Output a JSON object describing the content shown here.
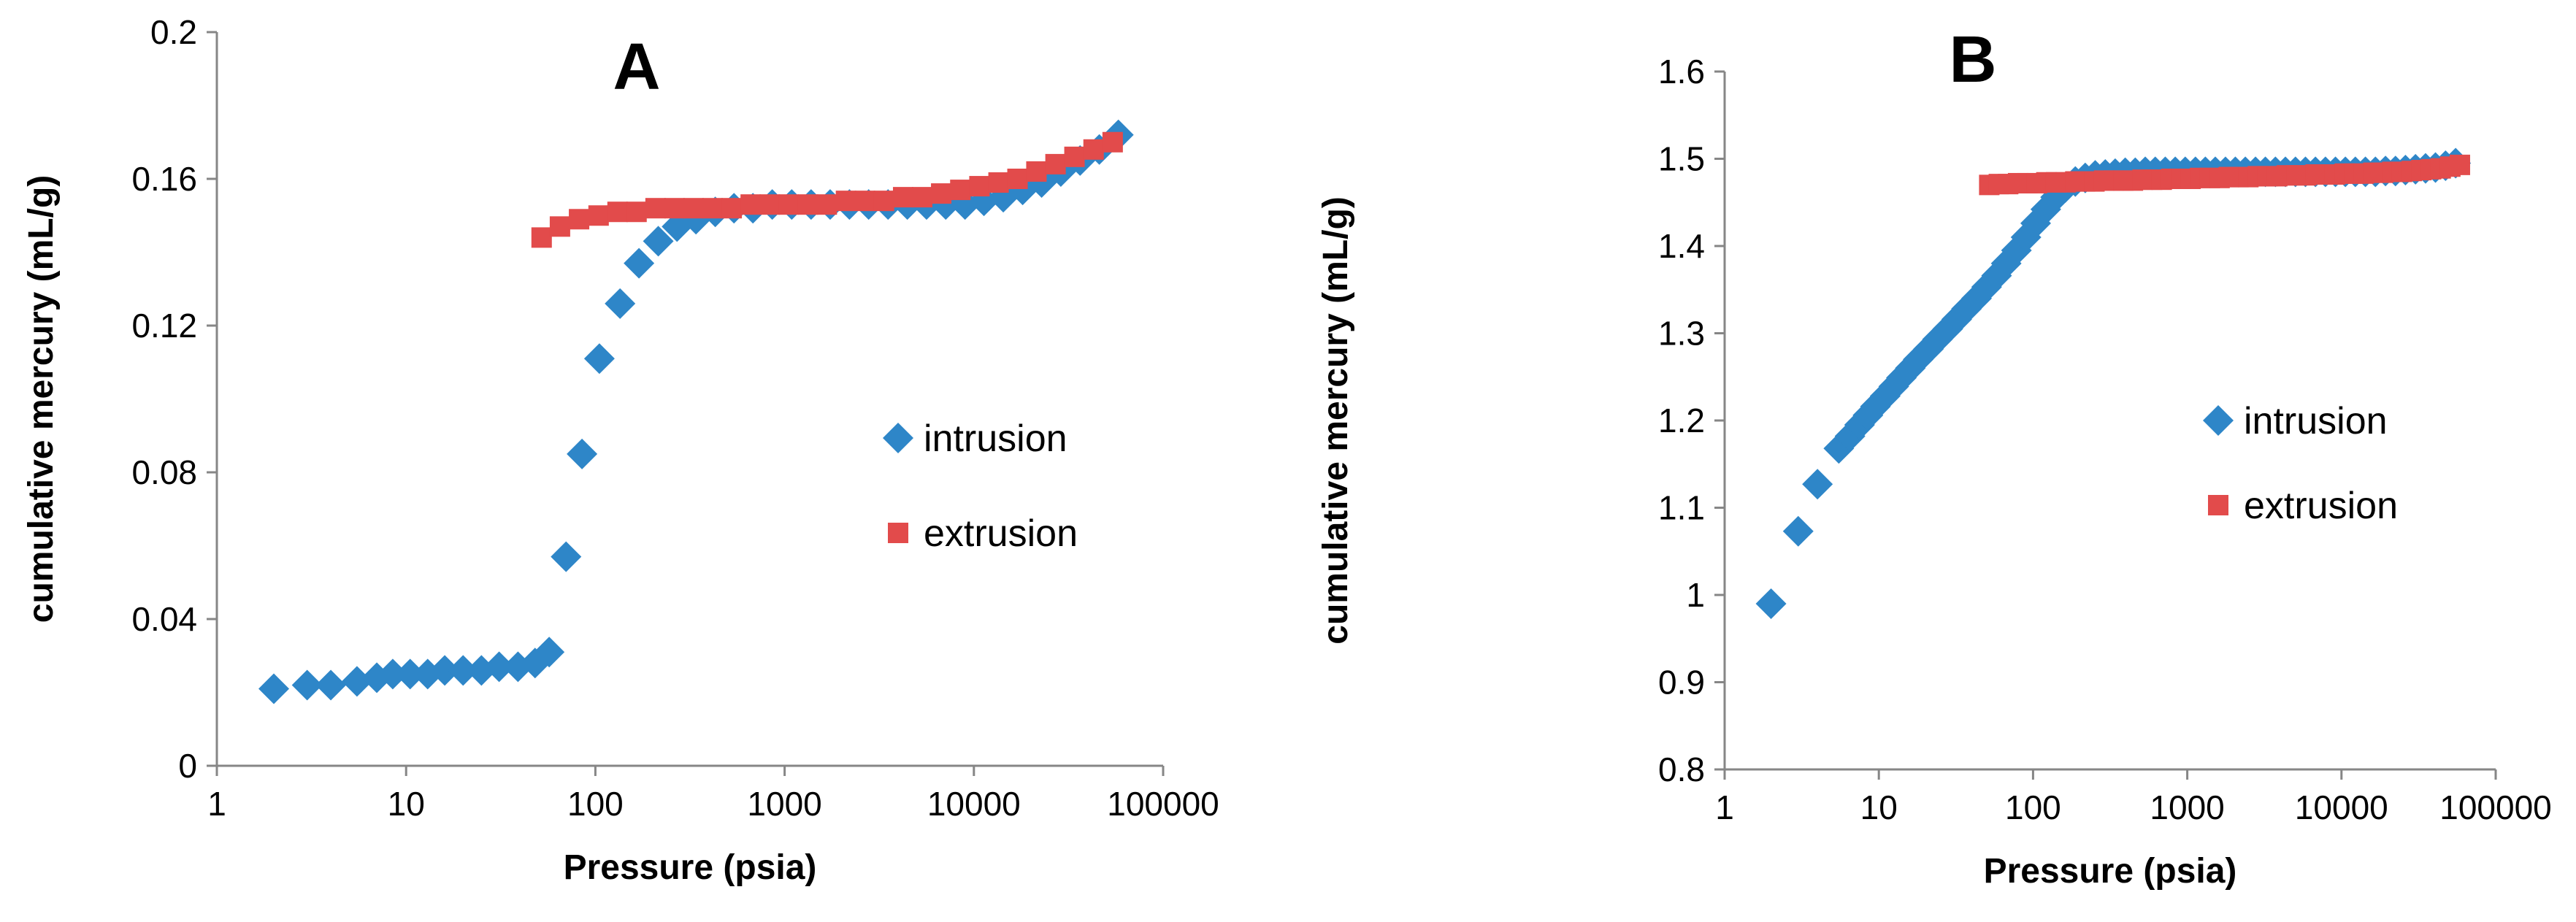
{
  "chart_data": [
    {
      "type": "scatter",
      "panel_label": "A",
      "xlabel": "Pressure (psia)",
      "ylabel": "cumulative mercury (mL/g)",
      "xscale": "log",
      "xlim": [
        1,
        100000
      ],
      "ylim": [
        0,
        0.2
      ],
      "x_tick_values": [
        1,
        10,
        100,
        1000,
        10000,
        100000
      ],
      "x_tick_labels": [
        "1",
        "10",
        "100",
        "1000",
        "10000",
        "100000"
      ],
      "y_tick_values": [
        0,
        0.04,
        0.08,
        0.12,
        0.16,
        0.2
      ],
      "y_tick_labels": [
        "0",
        "0.04",
        "0.08",
        "0.12",
        "0.16",
        "0.2"
      ],
      "legend": {
        "position": "right-middle",
        "entries": [
          "intrusion",
          "extrusion"
        ]
      },
      "series": [
        {
          "name": "intrusion",
          "marker": "diamond",
          "color": "#2E86C8",
          "x": [
            2,
            3,
            4,
            5.5,
            7,
            8.5,
            10.5,
            13,
            16,
            20,
            25,
            31,
            39,
            48,
            57,
            70,
            85,
            105,
            135,
            170,
            215,
            270,
            340,
            430,
            540,
            680,
            860,
            1090,
            1380,
            1740,
            2200,
            2780,
            3520,
            4450,
            5620,
            7100,
            8980,
            11300,
            14300,
            18100,
            22800,
            28800,
            36400,
            46000,
            58000
          ],
          "y": [
            0.021,
            0.022,
            0.022,
            0.023,
            0.024,
            0.025,
            0.025,
            0.025,
            0.026,
            0.026,
            0.026,
            0.027,
            0.027,
            0.028,
            0.031,
            0.057,
            0.085,
            0.111,
            0.126,
            0.137,
            0.143,
            0.147,
            0.149,
            0.151,
            0.152,
            0.152,
            0.153,
            0.153,
            0.153,
            0.153,
            0.153,
            0.153,
            0.153,
            0.153,
            0.153,
            0.153,
            0.153,
            0.154,
            0.155,
            0.157,
            0.159,
            0.162,
            0.165,
            0.168,
            0.172
          ]
        },
        {
          "name": "extrusion",
          "marker": "square",
          "color": "#E24B4B",
          "x": [
            52,
            65,
            82,
            104,
            131,
            165,
            208,
            262,
            330,
            416,
            525,
            662,
            835,
            1050,
            1330,
            1670,
            2110,
            2660,
            3350,
            4230,
            5330,
            6720,
            8480,
            10700,
            13500,
            17000,
            21400,
            27000,
            34000,
            42900,
            54100
          ],
          "y": [
            0.144,
            0.147,
            0.149,
            0.15,
            0.151,
            0.151,
            0.152,
            0.152,
            0.152,
            0.152,
            0.152,
            0.153,
            0.153,
            0.153,
            0.153,
            0.153,
            0.154,
            0.154,
            0.154,
            0.155,
            0.155,
            0.156,
            0.157,
            0.158,
            0.159,
            0.16,
            0.162,
            0.164,
            0.166,
            0.168,
            0.17
          ]
        }
      ]
    },
    {
      "type": "scatter",
      "panel_label": "B",
      "xlabel": "Pressure (psia)",
      "ylabel": "cumulative mercury (mL/g)",
      "xscale": "log",
      "xlim": [
        1,
        100000
      ],
      "ylim": [
        0.8,
        1.6
      ],
      "x_tick_values": [
        1,
        10,
        100,
        1000,
        10000,
        100000
      ],
      "x_tick_labels": [
        "1",
        "10",
        "100",
        "1000",
        "10000",
        "100000"
      ],
      "y_tick_values": [
        0.8,
        0.9,
        1.0,
        1.1,
        1.2,
        1.3,
        1.4,
        1.5,
        1.6
      ],
      "y_tick_labels": [
        "0.8",
        "0.9",
        "1",
        "1.1",
        "1.2",
        "1.3",
        "1.4",
        "1.5",
        "1.6"
      ],
      "legend": {
        "position": "right-middle",
        "entries": [
          "intrusion",
          "extrusion"
        ]
      },
      "series": [
        {
          "name": "intrusion",
          "marker": "diamond",
          "color": "#2E86C8",
          "x": [
            2,
            3,
            4,
            5.5,
            6.5,
            7.5,
            8.5,
            9.5,
            11,
            12.5,
            14,
            16,
            18,
            21,
            24,
            28,
            32,
            37,
            43,
            50,
            58,
            67,
            78,
            90,
            104,
            121,
            140,
            162,
            188,
            218,
            253,
            294,
            341,
            396,
            460,
            534,
            620,
            720,
            836,
            970,
            1130,
            1310,
            1520,
            1770,
            2050,
            2380,
            2770,
            3210,
            3730,
            4330,
            5030,
            5840,
            6780,
            7870,
            9140,
            10600,
            12300,
            14300,
            16600,
            19300,
            22400,
            26000,
            30200,
            35100,
            40700,
            47300,
            55000
          ],
          "y": [
            0.99,
            1.073,
            1.127,
            1.168,
            1.182,
            1.195,
            1.206,
            1.216,
            1.228,
            1.239,
            1.249,
            1.26,
            1.27,
            1.282,
            1.293,
            1.305,
            1.316,
            1.328,
            1.34,
            1.353,
            1.366,
            1.38,
            1.395,
            1.41,
            1.426,
            1.442,
            1.456,
            1.467,
            1.474,
            1.478,
            1.481,
            1.482,
            1.483,
            1.484,
            1.484,
            1.485,
            1.485,
            1.485,
            1.485,
            1.485,
            1.485,
            1.485,
            1.485,
            1.485,
            1.485,
            1.485,
            1.485,
            1.485,
            1.485,
            1.485,
            1.485,
            1.485,
            1.485,
            1.485,
            1.485,
            1.485,
            1.485,
            1.485,
            1.485,
            1.486,
            1.486,
            1.487,
            1.488,
            1.489,
            1.49,
            1.492,
            1.495
          ]
        },
        {
          "name": "extrusion",
          "marker": "square",
          "color": "#E24B4B",
          "x": [
            52,
            60,
            69,
            80,
            92,
            106,
            122,
            141,
            163,
            188,
            217,
            250,
            289,
            333,
            385,
            444,
            513,
            592,
            683,
            789,
            911,
            1050,
            1210,
            1400,
            1620,
            1860,
            2150,
            2490,
            2870,
            3310,
            3830,
            4420,
            5100,
            5890,
            6800,
            7850,
            9060,
            10500,
            12100,
            13900,
            16100,
            18600,
            21400,
            24700,
            28600,
            33000,
            38100,
            44000,
            50800,
            58600
          ],
          "y": [
            1.47,
            1.471,
            1.471,
            1.472,
            1.472,
            1.472,
            1.473,
            1.473,
            1.473,
            1.474,
            1.474,
            1.474,
            1.475,
            1.475,
            1.475,
            1.475,
            1.476,
            1.476,
            1.476,
            1.477,
            1.477,
            1.477,
            1.478,
            1.478,
            1.478,
            1.479,
            1.479,
            1.479,
            1.48,
            1.48,
            1.48,
            1.481,
            1.481,
            1.481,
            1.482,
            1.482,
            1.482,
            1.483,
            1.483,
            1.483,
            1.484,
            1.484,
            1.485,
            1.485,
            1.486,
            1.487,
            1.488,
            1.489,
            1.491,
            1.493
          ]
        }
      ]
    }
  ]
}
